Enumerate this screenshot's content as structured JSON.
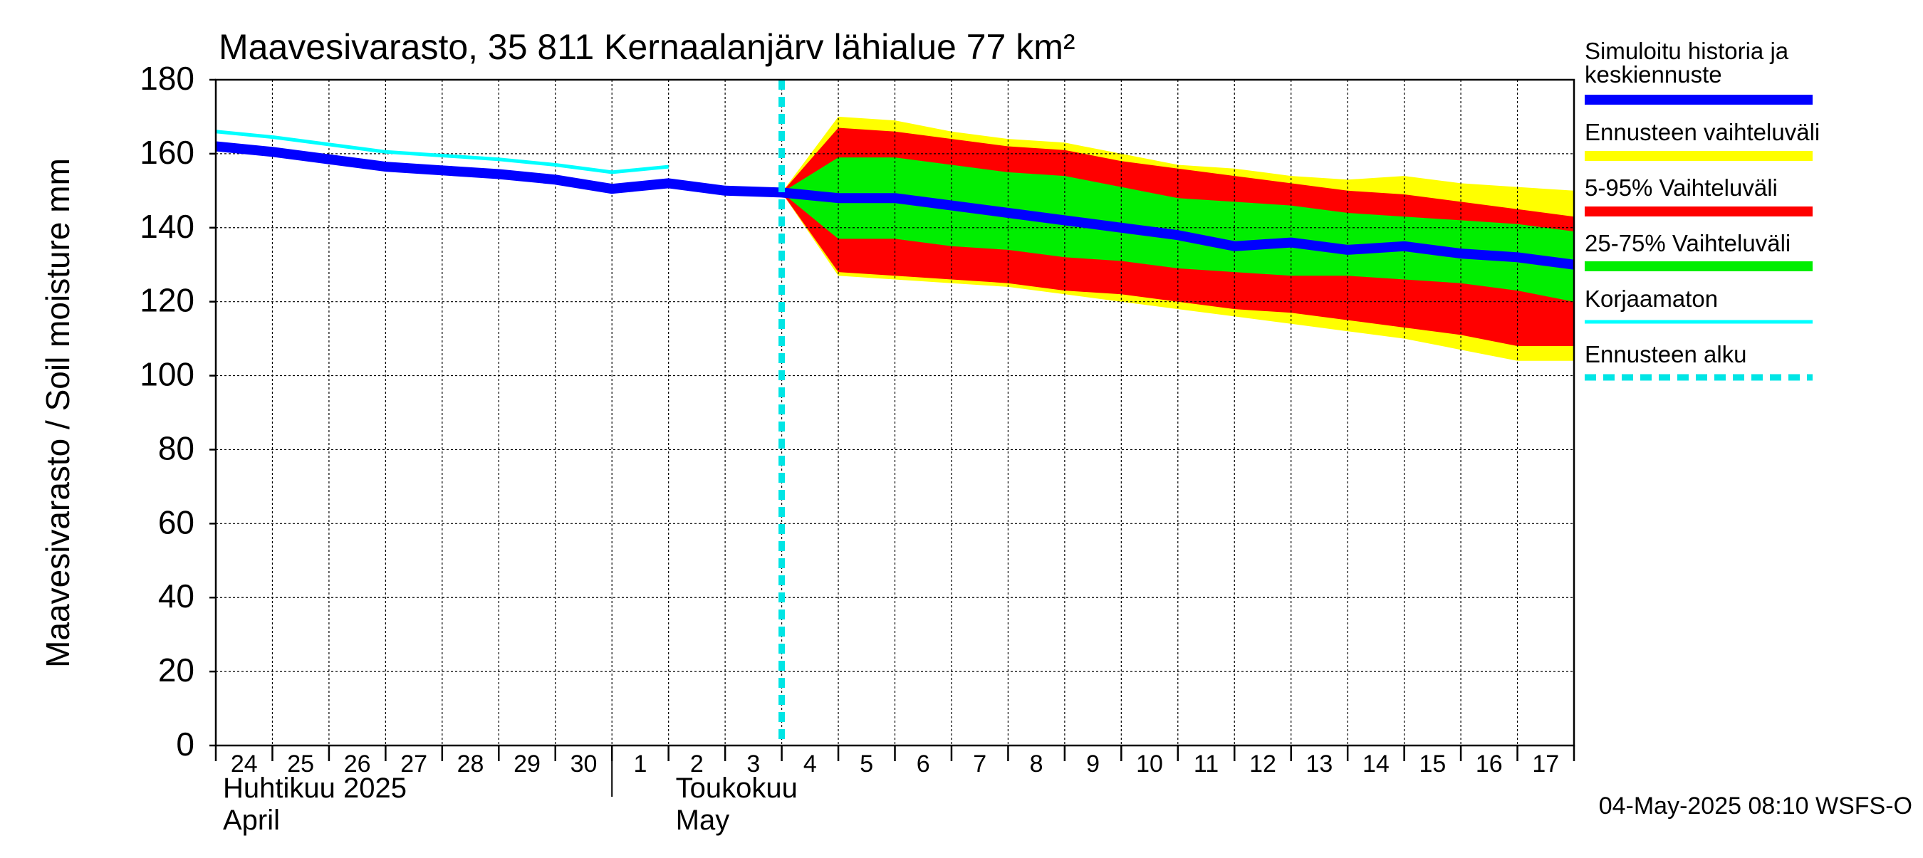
{
  "chart_data": {
    "type": "area",
    "title": "Maavesivarasto, 35 811 Kernaalanjärv lähialue 77 km²",
    "ylabel": "Maavesivarasto / Soil moisture   mm",
    "ylim": [
      0,
      180
    ],
    "yticks": [
      "0",
      "20",
      "40",
      "60",
      "80",
      "100",
      "120",
      "140",
      "160",
      "180"
    ],
    "x_start": "2025-04-24",
    "x_end": "2025-05-18",
    "x_tick_labels": [
      "24",
      "25",
      "26",
      "27",
      "28",
      "29",
      "30",
      "1",
      "2",
      "3",
      "4",
      "5",
      "6",
      "7",
      "8",
      "9",
      "10",
      "11",
      "12",
      "13",
      "14",
      "15",
      "16",
      "17"
    ],
    "month_labels": [
      {
        "fi": "Huhtikuu  2025",
        "en": "April",
        "date": "2025-04-24"
      },
      {
        "fi": "Toukokuu",
        "en": "May",
        "date": "2025-05-02"
      }
    ],
    "month_boundary": "2025-05-01",
    "forecast_start": "2025-05-04",
    "grid": true,
    "legend_position": "right",
    "legend": [
      {
        "label": "Simuloitu historia ja\nkeskiennuste",
        "color": "#0000ff",
        "style": "solid"
      },
      {
        "label": "Ennusteen vaihteluväli",
        "color": "#ffff00",
        "style": "solid"
      },
      {
        "label": "5-95% Vaihteluväli",
        "color": "#ff0000",
        "style": "solid"
      },
      {
        "label": "25-75% Vaihteluväli",
        "color": "#00ee00",
        "style": "solid"
      },
      {
        "label": "Korjaamaton",
        "color": "#00ffff",
        "style": "solid"
      },
      {
        "label": "Ennusteen alku",
        "color": "#00e5e5",
        "style": "dashed"
      }
    ],
    "x": [
      "2025-04-24",
      "2025-04-25",
      "2025-04-26",
      "2025-04-27",
      "2025-04-28",
      "2025-04-29",
      "2025-04-30",
      "2025-05-01",
      "2025-05-02",
      "2025-05-03",
      "2025-05-04",
      "2025-05-05",
      "2025-05-06",
      "2025-05-07",
      "2025-05-08",
      "2025-05-09",
      "2025-05-10",
      "2025-05-11",
      "2025-05-12",
      "2025-05-13",
      "2025-05-14",
      "2025-05-15",
      "2025-05-16",
      "2025-05-17",
      "2025-05-18"
    ],
    "series": [
      {
        "key": "range_upper",
        "color": "#ffff00",
        "values": [
          null,
          null,
          null,
          null,
          null,
          null,
          null,
          null,
          null,
          null,
          149.5,
          170,
          169,
          166,
          164,
          163,
          160,
          157,
          156,
          154,
          153,
          154,
          152,
          151,
          150
        ]
      },
      {
        "key": "range_lower",
        "color": "#ffff00",
        "values": [
          null,
          null,
          null,
          null,
          null,
          null,
          null,
          null,
          null,
          null,
          149.5,
          127,
          126,
          125,
          124,
          122,
          120,
          118,
          116,
          114,
          112,
          110,
          107,
          104,
          104
        ]
      },
      {
        "key": "p95",
        "color": "#ff0000",
        "values": [
          null,
          null,
          null,
          null,
          null,
          null,
          null,
          null,
          null,
          null,
          149.5,
          167,
          166,
          164,
          162,
          161,
          158,
          156,
          154,
          152,
          150,
          149,
          147,
          145,
          143
        ]
      },
      {
        "key": "p05",
        "color": "#ff0000",
        "values": [
          null,
          null,
          null,
          null,
          null,
          null,
          null,
          null,
          null,
          null,
          149.5,
          128,
          127,
          126,
          125,
          123,
          122,
          120,
          118,
          117,
          115,
          113,
          111,
          108,
          108
        ]
      },
      {
        "key": "p75",
        "color": "#00ee00",
        "values": [
          null,
          null,
          null,
          null,
          null,
          null,
          null,
          null,
          null,
          null,
          149.5,
          159,
          159,
          157,
          155,
          154,
          151,
          148,
          147,
          146,
          144,
          143,
          142,
          141,
          139
        ]
      },
      {
        "key": "p25",
        "color": "#00ee00",
        "values": [
          null,
          null,
          null,
          null,
          null,
          null,
          null,
          null,
          null,
          null,
          149.5,
          137,
          137,
          135,
          134,
          132,
          131,
          129,
          128,
          127,
          127,
          126,
          125,
          123,
          120
        ]
      },
      {
        "key": "median",
        "color": "#0000ff",
        "values": [
          162,
          160.5,
          158.5,
          156.5,
          155.5,
          154.5,
          153,
          150.5,
          152,
          150,
          149.5,
          148,
          148,
          146,
          144,
          142,
          140,
          138,
          135,
          136,
          134,
          135,
          133,
          132,
          130
        ]
      },
      {
        "key": "uncorrected",
        "color": "#00ffff",
        "values": [
          166,
          164.5,
          162.5,
          160.5,
          159.5,
          158.5,
          157,
          155,
          156.5,
          null,
          null,
          null,
          null,
          null,
          null,
          null,
          null,
          null,
          null,
          null,
          null,
          null,
          null,
          null,
          null
        ]
      }
    ],
    "footer": "04-May-2025 08:10 WSFS-O"
  }
}
